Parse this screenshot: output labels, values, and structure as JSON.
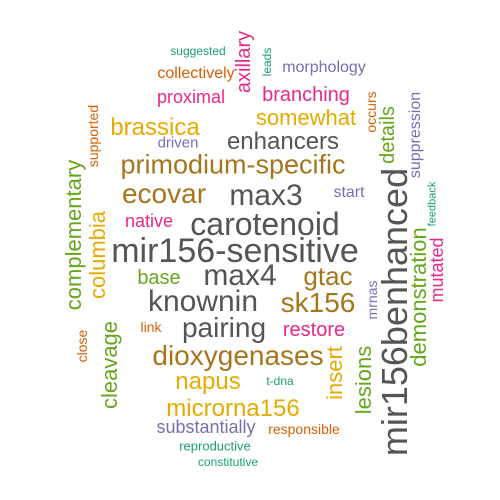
{
  "colors": {
    "teal": "#1b9e77",
    "orange": "#d95f02",
    "purple": "#7570b3",
    "magenta": "#e7298a",
    "green": "#66a61e",
    "gold": "#e6ab02",
    "brown": "#a6761d",
    "gray": "#555555"
  },
  "words": [
    {
      "text": "suggested",
      "color": "teal"
    },
    {
      "text": "leads",
      "color": "teal"
    },
    {
      "text": "axillary",
      "color": "magenta"
    },
    {
      "text": "collectively",
      "color": "orange"
    },
    {
      "text": "morphology",
      "color": "purple"
    },
    {
      "text": "proximal",
      "color": "magenta"
    },
    {
      "text": "branching",
      "color": "magenta"
    },
    {
      "text": "supported",
      "color": "orange"
    },
    {
      "text": "occurs",
      "color": "orange"
    },
    {
      "text": "suppression",
      "color": "purple"
    },
    {
      "text": "somewhat",
      "color": "gold"
    },
    {
      "text": "brassica",
      "color": "gold"
    },
    {
      "text": "enhancers",
      "color": "gray"
    },
    {
      "text": "driven",
      "color": "purple"
    },
    {
      "text": "details",
      "color": "green"
    },
    {
      "text": "primodium-specific",
      "color": "brown"
    },
    {
      "text": "complementary",
      "color": "green"
    },
    {
      "text": "ecovar",
      "color": "brown"
    },
    {
      "text": "max3",
      "color": "gray"
    },
    {
      "text": "start",
      "color": "purple"
    },
    {
      "text": "feedback",
      "color": "teal"
    },
    {
      "text": "mir156benhanced",
      "color": "gray"
    },
    {
      "text": "columbia",
      "color": "gold"
    },
    {
      "text": "native",
      "color": "magenta"
    },
    {
      "text": "carotenoid",
      "color": "gray"
    },
    {
      "text": "demonstration",
      "color": "green"
    },
    {
      "text": "mutated",
      "color": "magenta"
    },
    {
      "text": "mir156-sensitive",
      "color": "gray"
    },
    {
      "text": "base",
      "color": "green"
    },
    {
      "text": "max4",
      "color": "gray"
    },
    {
      "text": "gtac",
      "color": "brown"
    },
    {
      "text": "mrnas",
      "color": "purple"
    },
    {
      "text": "knownin",
      "color": "gray"
    },
    {
      "text": "sk156",
      "color": "brown"
    },
    {
      "text": "close",
      "color": "orange"
    },
    {
      "text": "cleavage",
      "color": "green"
    },
    {
      "text": "link",
      "color": "orange"
    },
    {
      "text": "pairing",
      "color": "gray"
    },
    {
      "text": "restore",
      "color": "magenta"
    },
    {
      "text": "lesions",
      "color": "green"
    },
    {
      "text": "insert",
      "color": "gold"
    },
    {
      "text": "dioxygenases",
      "color": "brown"
    },
    {
      "text": "napus",
      "color": "gold"
    },
    {
      "text": "t-dna",
      "color": "teal"
    },
    {
      "text": "microrna156",
      "color": "gold"
    },
    {
      "text": "substantially",
      "color": "purple"
    },
    {
      "text": "responsible",
      "color": "orange"
    },
    {
      "text": "reproductive",
      "color": "teal"
    },
    {
      "text": "constitutive",
      "color": "teal"
    }
  ]
}
